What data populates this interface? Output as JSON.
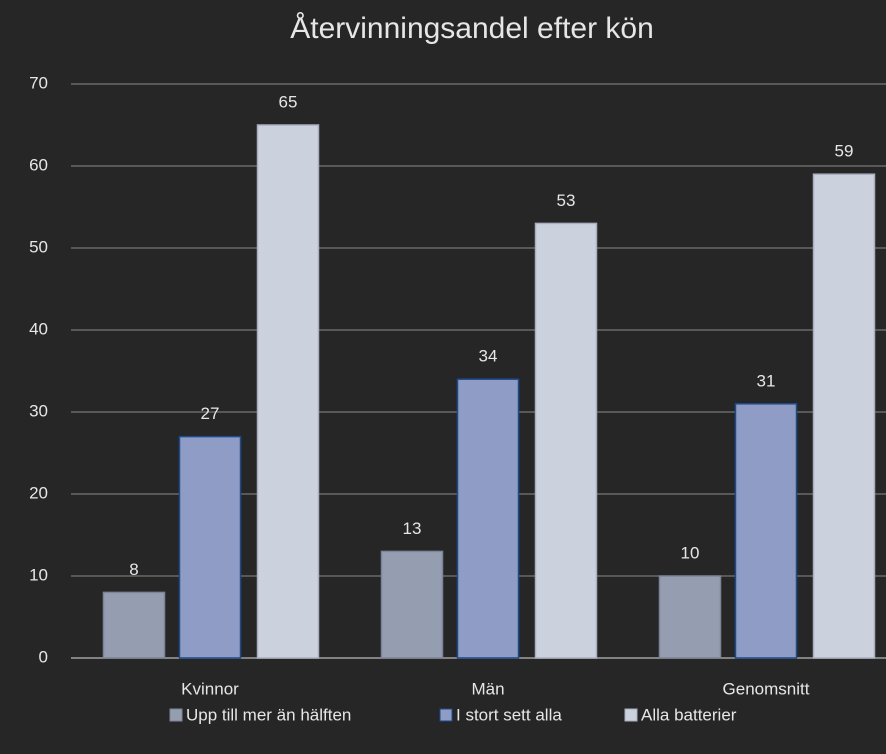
{
  "chart_data": {
    "type": "bar",
    "title": "Återvinningsandel efter kön",
    "categories": [
      "Kvinnor",
      "Män",
      "Genomsnitt"
    ],
    "series": [
      {
        "name": "Upp till mer än hälften",
        "color": "#959eb0",
        "values": [
          8,
          13,
          10
        ]
      },
      {
        "name": "I stort sett alla",
        "color": "#8e9cc6",
        "values": [
          27,
          34,
          31
        ]
      },
      {
        "name": "Alla batterier",
        "color": "#ccd1de",
        "values": [
          65,
          53,
          59
        ]
      }
    ],
    "ylim": [
      0,
      70
    ],
    "yticks": [
      0,
      10,
      20,
      30,
      40,
      50,
      60,
      70
    ],
    "grid": true,
    "legend": "bottom"
  }
}
